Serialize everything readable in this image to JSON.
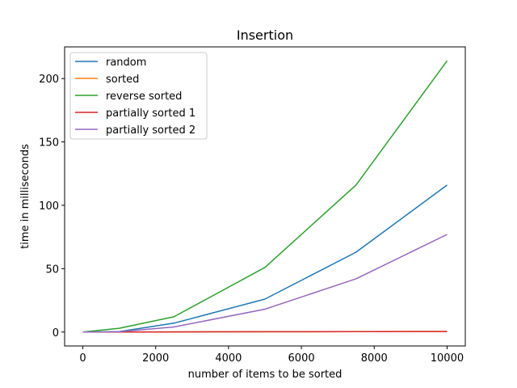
{
  "chart_data": {
    "type": "line",
    "title": "Insertion",
    "xlabel": "number of items to be sorted",
    "ylabel": "time in milliseconds",
    "xlim": [
      -500,
      10500
    ],
    "ylim": [
      -11,
      225
    ],
    "xticks": [
      0,
      2000,
      4000,
      6000,
      8000,
      10000
    ],
    "yticks": [
      0,
      50,
      100,
      150,
      200
    ],
    "grid": false,
    "legend_position": "top-left",
    "x": [
      0,
      1000,
      2500,
      5000,
      7500,
      10000
    ],
    "series": [
      {
        "name": "random",
        "color": "#1f77b4",
        "values": [
          0,
          0.3,
          7,
          26,
          63,
          116
        ]
      },
      {
        "name": "sorted",
        "color": "#ff7f0e",
        "values": [
          0,
          0,
          0.1,
          0.2,
          0.3,
          0.4
        ]
      },
      {
        "name": "reverse sorted",
        "color": "#2ca02c",
        "values": [
          0,
          3,
          12,
          51,
          116,
          214
        ]
      },
      {
        "name": "partially sorted 1",
        "color": "#d62728",
        "values": [
          0,
          0,
          0.1,
          0.2,
          0.3,
          0.4
        ]
      },
      {
        "name": "partially sorted 2",
        "color": "#9467bd",
        "values": [
          0,
          0.2,
          4,
          18,
          42,
          77
        ]
      }
    ]
  }
}
